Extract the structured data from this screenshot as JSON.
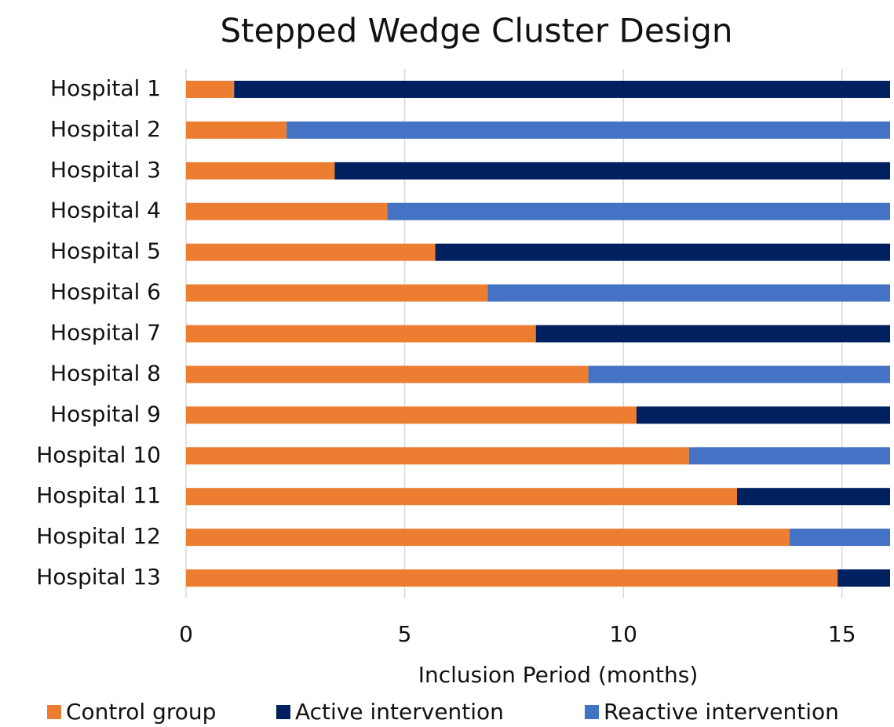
{
  "chart_data": {
    "type": "stacked_barh",
    "title": "Stepped Wedge Cluster Design",
    "x_label": "Inclusion Period (months)",
    "categories": [
      "Hospital 1",
      "Hospital 2",
      "Hospital 3",
      "Hospital 4",
      "Hospital 5",
      "Hospital 6",
      "Hospital 7",
      "Hospital 8",
      "Hospital 9",
      "Hospital 10",
      "Hospital 11",
      "Hospital 12",
      "Hospital 13"
    ],
    "series": [
      {
        "name": "Control group",
        "color": "#ed7d31",
        "values": [
          1.1,
          2.3,
          3.4,
          4.6,
          5.7,
          6.9,
          8,
          9.2,
          10.3,
          11.5,
          12.6,
          13.8,
          14.9
        ]
      },
      {
        "name": "Active intervention",
        "color": "#002060",
        "values": [
          15,
          null,
          12.7,
          null,
          10.4,
          null,
          8.1,
          null,
          5.8,
          null,
          3.5,
          null,
          1.2
        ]
      },
      {
        "name": "Reactive intervention",
        "color": "#4472c4",
        "values": [
          null,
          13.8,
          null,
          11.5,
          null,
          9.2,
          null,
          6.9,
          null,
          4.6,
          null,
          2.3,
          null
        ]
      }
    ],
    "xlim": [
      0,
      16.1
    ],
    "xticks": [
      0,
      5,
      10,
      15
    ],
    "grid": true,
    "legend": "bottom"
  }
}
